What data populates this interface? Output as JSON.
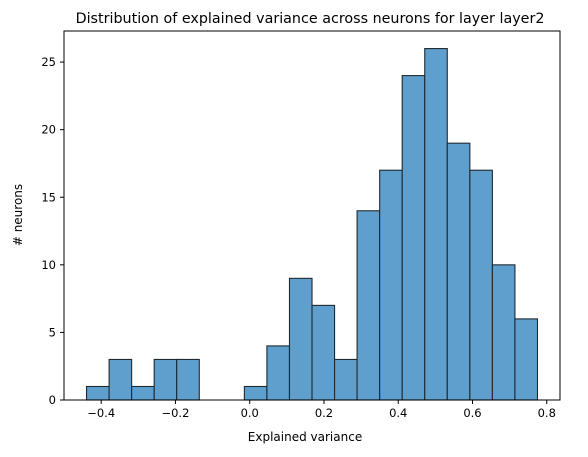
{
  "chart_data": {
    "type": "bar",
    "title": "Distribution of explained variance across neurons for layer layer2",
    "xlabel": "Explained variance",
    "ylabel": "# neurons",
    "bins": [
      {
        "x0": -0.4395,
        "x1": -0.3787,
        "count": 1
      },
      {
        "x0": -0.3787,
        "x1": -0.318,
        "count": 3
      },
      {
        "x0": -0.318,
        "x1": -0.2573,
        "count": 1
      },
      {
        "x0": -0.2573,
        "x1": -0.1966,
        "count": 3
      },
      {
        "x0": -0.1966,
        "x1": -0.1358,
        "count": 3
      },
      {
        "x0": -0.1358,
        "x1": -0.0751,
        "count": 0
      },
      {
        "x0": -0.0751,
        "x1": -0.0144,
        "count": 0
      },
      {
        "x0": -0.0144,
        "x1": 0.0463,
        "count": 1
      },
      {
        "x0": 0.0463,
        "x1": 0.1071,
        "count": 4
      },
      {
        "x0": 0.1071,
        "x1": 0.1678,
        "count": 9
      },
      {
        "x0": 0.1678,
        "x1": 0.2285,
        "count": 7
      },
      {
        "x0": 0.2285,
        "x1": 0.2892,
        "count": 3
      },
      {
        "x0": 0.2892,
        "x1": 0.35,
        "count": 14
      },
      {
        "x0": 0.35,
        "x1": 0.4107,
        "count": 17
      },
      {
        "x0": 0.4107,
        "x1": 0.4714,
        "count": 24
      },
      {
        "x0": 0.4714,
        "x1": 0.5321,
        "count": 26
      },
      {
        "x0": 0.5321,
        "x1": 0.5929,
        "count": 19
      },
      {
        "x0": 0.5929,
        "x1": 0.6536,
        "count": 17
      },
      {
        "x0": 0.6536,
        "x1": 0.7143,
        "count": 10
      },
      {
        "x0": 0.7143,
        "x1": 0.775,
        "count": 6
      }
    ],
    "xlim": [
      -0.5002,
      0.8357
    ],
    "ylim": [
      0,
      27.3
    ],
    "xticks": [
      -0.4,
      -0.2,
      0.0,
      0.2,
      0.4,
      0.6,
      0.8
    ],
    "xtick_labels": [
      "−0.4",
      "−0.2",
      "0.0",
      "0.2",
      "0.4",
      "0.6",
      "0.8"
    ],
    "yticks": [
      0,
      5,
      10,
      15,
      20,
      25
    ],
    "ytick_labels": [
      "0",
      "5",
      "10",
      "15",
      "20",
      "25"
    ],
    "bar_color": "#5f9fcd",
    "edge_color": "#1f2a30",
    "grid": false,
    "legend": "none"
  }
}
